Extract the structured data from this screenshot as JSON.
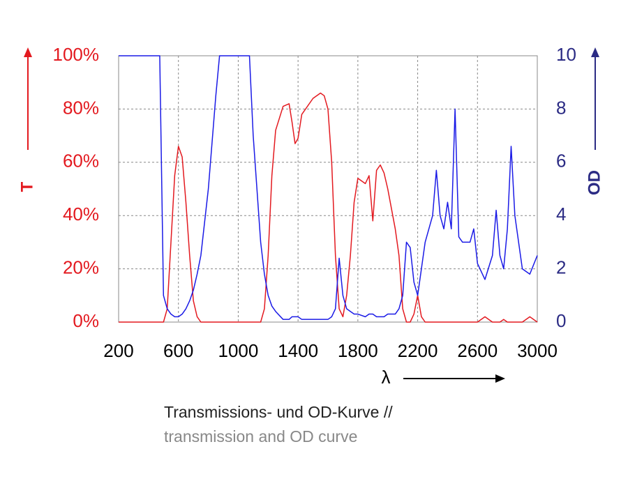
{
  "chart_data": {
    "type": "line",
    "xlabel": "λ",
    "ylabel": "T",
    "y2label": "OD",
    "caption": [
      "Transmissions- und OD-Kurve //",
      "transmission and OD curve"
    ],
    "x": [
      200,
      300,
      400,
      450,
      475,
      500,
      525,
      550,
      575,
      600,
      625,
      650,
      675,
      700,
      725,
      750,
      800,
      850,
      875,
      900,
      1000,
      1075,
      1100,
      1150,
      1175,
      1200,
      1225,
      1250,
      1300,
      1340,
      1360,
      1380,
      1400,
      1425,
      1450,
      1500,
      1550,
      1575,
      1600,
      1625,
      1650,
      1675,
      1700,
      1725,
      1750,
      1775,
      1800,
      1850,
      1875,
      1900,
      1925,
      1950,
      1975,
      2000,
      2050,
      2075,
      2100,
      2125,
      2150,
      2175,
      2200,
      2225,
      2250,
      2300,
      2325,
      2350,
      2375,
      2400,
      2425,
      2450,
      2475,
      2500,
      2550,
      2575,
      2600,
      2650,
      2700,
      2725,
      2750,
      2775,
      2800,
      2825,
      2850,
      2900,
      2950,
      3000
    ],
    "series": [
      {
        "name": "T",
        "color": "#e3191f",
        "axis": "y",
        "values": [
          0,
          0,
          0,
          0,
          0,
          0,
          5,
          30,
          55,
          66,
          62,
          45,
          25,
          8,
          2,
          0,
          0,
          0,
          0,
          0,
          0,
          0,
          0,
          0,
          5,
          25,
          55,
          72,
          81,
          82,
          75,
          67,
          69,
          78,
          80,
          84,
          86,
          85,
          80,
          60,
          25,
          5,
          2,
          10,
          25,
          45,
          54,
          52,
          55,
          38,
          57,
          59,
          56,
          50,
          35,
          25,
          5,
          0,
          0,
          3,
          10,
          2,
          0,
          0,
          0,
          0,
          0,
          0,
          0,
          0,
          0,
          0,
          0,
          0,
          0,
          2,
          0,
          0,
          0,
          1,
          0,
          0,
          0,
          0,
          2,
          0
        ]
      },
      {
        "name": "OD",
        "color": "#1a1ae6",
        "axis": "y2",
        "values": [
          10,
          10,
          10,
          10,
          10,
          1,
          0.5,
          0.3,
          0.2,
          0.2,
          0.3,
          0.5,
          0.8,
          1.2,
          1.8,
          2.5,
          5,
          8.5,
          10,
          10,
          10,
          10,
          7,
          3,
          1.8,
          1,
          0.6,
          0.4,
          0.1,
          0.1,
          0.2,
          0.2,
          0.2,
          0.1,
          0.1,
          0.1,
          0.1,
          0.1,
          0.1,
          0.2,
          0.5,
          2.4,
          1,
          0.5,
          0.4,
          0.3,
          0.3,
          0.2,
          0.3,
          0.3,
          0.2,
          0.2,
          0.2,
          0.3,
          0.3,
          0.5,
          1,
          3,
          2.8,
          1.5,
          1,
          2,
          3,
          4,
          5.7,
          4,
          3.5,
          4.5,
          3.5,
          8,
          3.2,
          3,
          3,
          3.5,
          2.2,
          1.6,
          2.5,
          4.2,
          2.5,
          2,
          3.5,
          6.6,
          4,
          2,
          1.8,
          2.5
        ]
      }
    ],
    "xlim": [
      200,
      3000
    ],
    "xticks": [
      200,
      600,
      1000,
      1400,
      1800,
      2200,
      2600,
      3000
    ],
    "ylim": [
      0,
      100
    ],
    "yticks": [
      {
        "value": 0,
        "label": "0%"
      },
      {
        "value": 20,
        "label": "20%"
      },
      {
        "value": 40,
        "label": "40%"
      },
      {
        "value": 60,
        "label": "60%"
      },
      {
        "value": 80,
        "label": "80%"
      },
      {
        "value": 100,
        "label": "100%"
      }
    ],
    "y2lim": [
      0,
      10
    ],
    "y2ticks": [
      0,
      2,
      4,
      6,
      8,
      10
    ],
    "grid": true,
    "ycolor": "#e3191f",
    "y2color": "#2b2b84"
  }
}
